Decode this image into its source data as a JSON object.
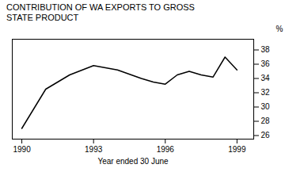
{
  "chart_data": {
    "type": "line",
    "title": "CONTRIBUTION OF WA EXPORTS TO GROSS\nSTATE PRODUCT",
    "xlabel": "Year ended 30 June",
    "ylabel": "%",
    "x": [
      1990,
      1991,
      1992,
      1993,
      1994,
      1995,
      1995.5,
      1996,
      1996.5,
      1997,
      1997.5,
      1998,
      1998.5,
      1999
    ],
    "values": [
      27.0,
      32.5,
      34.5,
      35.8,
      35.2,
      34.0,
      33.5,
      33.2,
      34.5,
      35.0,
      34.5,
      34.2,
      37.0,
      35.2
    ],
    "color": "#000000",
    "xlim": [
      1989.6,
      1999.7
    ],
    "xticks": [
      1990,
      1993,
      1996,
      1999
    ],
    "ylim": [
      25.5,
      39.5
    ],
    "yticks": [
      26,
      28,
      30,
      32,
      34,
      36,
      38
    ],
    "grid": false
  }
}
